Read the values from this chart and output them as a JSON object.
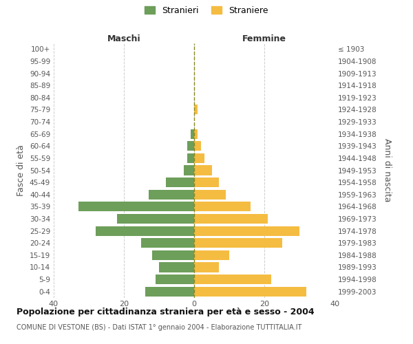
{
  "age_groups_bottom_to_top": [
    "0-4",
    "5-9",
    "10-14",
    "15-19",
    "20-24",
    "25-29",
    "30-34",
    "35-39",
    "40-44",
    "45-49",
    "50-54",
    "55-59",
    "60-64",
    "65-69",
    "70-74",
    "75-79",
    "80-84",
    "85-89",
    "90-94",
    "95-99",
    "100+"
  ],
  "birth_years_bottom_to_top": [
    "1999-2003",
    "1994-1998",
    "1989-1993",
    "1984-1988",
    "1979-1983",
    "1974-1978",
    "1969-1973",
    "1964-1968",
    "1959-1963",
    "1954-1958",
    "1949-1953",
    "1944-1948",
    "1939-1943",
    "1934-1938",
    "1929-1933",
    "1924-1928",
    "1919-1923",
    "1914-1918",
    "1909-1913",
    "1904-1908",
    "≤ 1903"
  ],
  "males_bottom_to_top": [
    14,
    11,
    10,
    12,
    15,
    28,
    22,
    33,
    13,
    8,
    3,
    2,
    2,
    1,
    0,
    0,
    0,
    0,
    0,
    0,
    0
  ],
  "females_bottom_to_top": [
    32,
    22,
    7,
    10,
    25,
    30,
    21,
    16,
    9,
    7,
    5,
    3,
    2,
    1,
    0,
    1,
    0,
    0,
    0,
    0,
    0
  ],
  "male_color": "#6d9e5a",
  "female_color": "#f5bc42",
  "background_color": "#ffffff",
  "grid_color": "#cccccc",
  "title": "Popolazione per cittadinanza straniera per età e sesso - 2004",
  "subtitle": "COMUNE DI VESTONE (BS) - Dati ISTAT 1° gennaio 2004 - Elaborazione TUTTITALIA.IT",
  "left_label": "Maschi",
  "right_label": "Femmine",
  "y_left_label": "Fasce di età",
  "y_right_label": "Anni di nascita",
  "legend_males": "Stranieri",
  "legend_females": "Straniere",
  "xlim": 40,
  "bar_height": 0.8
}
